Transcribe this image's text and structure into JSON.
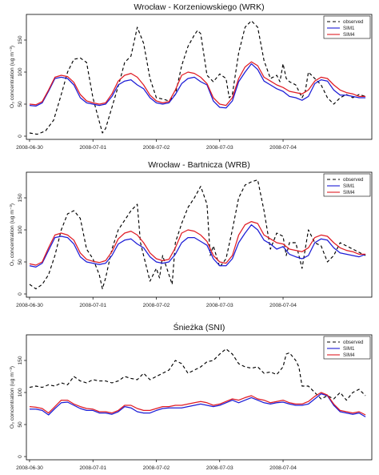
{
  "figure": {
    "ylabel": "O₃ concentration (ug m⁻³)",
    "xticks": [
      "2008-06-30",
      "2008-07-01",
      "2008-07-02",
      "2008-07-03",
      "2008-07-04"
    ],
    "legend": [
      {
        "label": "observed",
        "color": "#000000",
        "dash": "4,3"
      },
      {
        "label": "SIM1",
        "color": "#1c1cd6",
        "dash": ""
      },
      {
        "label": "SIM4",
        "color": "#e01b24",
        "dash": ""
      }
    ]
  },
  "chart_data": [
    {
      "type": "line",
      "title": "Wrocław - Korzeniowskiego (WRK)",
      "ylim": [
        -5,
        190
      ],
      "yticks": [
        0,
        50,
        100,
        150
      ],
      "xlim": [
        -0.05,
        5.4
      ],
      "legend_position": "top-right",
      "series": [
        {
          "name": "observed",
          "x": [
            0,
            0.12,
            0.25,
            0.38,
            0.5,
            0.6,
            0.7,
            0.8,
            0.9,
            1.0,
            1.08,
            1.15,
            1.2,
            1.3,
            1.42,
            1.5,
            1.6,
            1.7,
            1.8,
            1.9,
            2.0,
            2.1,
            2.2,
            2.3,
            2.4,
            2.5,
            2.6,
            2.65,
            2.7,
            2.8,
            2.9,
            3.0,
            3.1,
            3.15,
            3.2,
            3.3,
            3.4,
            3.5,
            3.6,
            3.7,
            3.8,
            3.9,
            3.95,
            4.0,
            4.05,
            4.1,
            4.2,
            4.3,
            4.35,
            4.4,
            4.5,
            4.6,
            4.7,
            4.8,
            4.9,
            5.0,
            5.1,
            5.2,
            5.3
          ],
          "y": [
            5,
            3,
            8,
            25,
            65,
            100,
            120,
            122,
            115,
            60,
            30,
            5,
            12,
            45,
            85,
            115,
            125,
            170,
            145,
            90,
            60,
            58,
            55,
            65,
            110,
            140,
            158,
            165,
            160,
            95,
            85,
            97,
            90,
            60,
            65,
            130,
            170,
            180,
            170,
            118,
            90,
            95,
            85,
            113,
            90,
            85,
            80,
            60,
            70,
            100,
            90,
            80,
            60,
            50,
            60,
            65,
            60,
            65,
            62
          ]
        },
        {
          "name": "SIM1",
          "x": [
            0,
            0.1,
            0.2,
            0.3,
            0.4,
            0.5,
            0.6,
            0.7,
            0.8,
            0.9,
            1.0,
            1.1,
            1.2,
            1.3,
            1.4,
            1.5,
            1.6,
            1.7,
            1.8,
            1.9,
            2.0,
            2.1,
            2.2,
            2.3,
            2.4,
            2.5,
            2.6,
            2.7,
            2.8,
            2.9,
            3.0,
            3.1,
            3.2,
            3.3,
            3.4,
            3.5,
            3.6,
            3.7,
            3.8,
            3.9,
            4.0,
            4.1,
            4.2,
            4.3,
            4.4,
            4.5,
            4.6,
            4.7,
            4.8,
            4.9,
            5.0,
            5.1,
            5.2,
            5.3
          ],
          "y": [
            48,
            47,
            52,
            70,
            90,
            92,
            90,
            80,
            60,
            52,
            50,
            48,
            50,
            62,
            80,
            86,
            88,
            80,
            74,
            60,
            52,
            50,
            52,
            65,
            82,
            90,
            92,
            85,
            80,
            55,
            45,
            44,
            55,
            85,
            100,
            113,
            104,
            86,
            80,
            74,
            70,
            62,
            60,
            56,
            62,
            82,
            88,
            86,
            72,
            64,
            64,
            62,
            60,
            60
          ]
        },
        {
          "name": "SIM4",
          "x": [
            0,
            0.1,
            0.2,
            0.3,
            0.4,
            0.5,
            0.6,
            0.7,
            0.8,
            0.9,
            1.0,
            1.1,
            1.2,
            1.3,
            1.4,
            1.5,
            1.6,
            1.7,
            1.8,
            1.9,
            2.0,
            2.1,
            2.2,
            2.3,
            2.4,
            2.5,
            2.6,
            2.7,
            2.8,
            2.9,
            3.0,
            3.1,
            3.2,
            3.3,
            3.4,
            3.5,
            3.6,
            3.7,
            3.8,
            3.9,
            4.0,
            4.1,
            4.2,
            4.3,
            4.4,
            4.5,
            4.6,
            4.7,
            4.8,
            4.9,
            5.0,
            5.1,
            5.2,
            5.3
          ],
          "y": [
            50,
            49,
            54,
            72,
            92,
            95,
            93,
            84,
            65,
            55,
            52,
            50,
            52,
            66,
            86,
            95,
            98,
            92,
            80,
            64,
            55,
            52,
            54,
            72,
            95,
            100,
            98,
            92,
            82,
            60,
            50,
            48,
            60,
            90,
            108,
            116,
            110,
            92,
            86,
            80,
            76,
            70,
            68,
            66,
            72,
            86,
            92,
            90,
            80,
            72,
            68,
            66,
            62,
            62
          ]
        }
      ]
    },
    {
      "type": "line",
      "title": "Wrocław - Bartnicza (WRB)",
      "ylim": [
        -5,
        190
      ],
      "yticks": [
        0,
        50,
        100,
        150
      ],
      "xlim": [
        -0.05,
        5.4
      ],
      "legend_position": "top-right",
      "series": [
        {
          "name": "observed",
          "x": [
            0,
            0.1,
            0.2,
            0.3,
            0.4,
            0.5,
            0.6,
            0.7,
            0.8,
            0.9,
            1.0,
            1.1,
            1.15,
            1.2,
            1.3,
            1.4,
            1.5,
            1.6,
            1.7,
            1.75,
            1.8,
            1.9,
            2.0,
            2.05,
            2.1,
            2.2,
            2.25,
            2.3,
            2.4,
            2.5,
            2.6,
            2.7,
            2.8,
            2.85,
            2.9,
            3.0,
            3.1,
            3.2,
            3.3,
            3.4,
            3.5,
            3.6,
            3.7,
            3.8,
            3.9,
            4.0,
            4.05,
            4.1,
            4.2,
            4.3,
            4.4,
            4.5,
            4.6,
            4.7,
            4.8,
            4.9,
            5.0,
            5.1,
            5.2,
            5.3
          ],
          "y": [
            15,
            8,
            15,
            30,
            60,
            100,
            125,
            130,
            118,
            70,
            55,
            30,
            8,
            25,
            70,
            100,
            115,
            130,
            140,
            80,
            60,
            20,
            40,
            25,
            60,
            30,
            15,
            80,
            110,
            135,
            150,
            168,
            140,
            60,
            75,
            42,
            55,
            100,
            150,
            170,
            175,
            178,
            130,
            70,
            95,
            90,
            60,
            80,
            80,
            40,
            100,
            80,
            75,
            50,
            60,
            80,
            75,
            70,
            65,
            60
          ]
        },
        {
          "name": "SIM1",
          "x": [
            0,
            0.1,
            0.2,
            0.3,
            0.4,
            0.5,
            0.6,
            0.7,
            0.8,
            0.9,
            1.0,
            1.1,
            1.2,
            1.3,
            1.4,
            1.5,
            1.6,
            1.7,
            1.8,
            1.9,
            2.0,
            2.1,
            2.2,
            2.3,
            2.4,
            2.5,
            2.6,
            2.7,
            2.8,
            2.9,
            3.0,
            3.1,
            3.2,
            3.3,
            3.4,
            3.5,
            3.6,
            3.7,
            3.8,
            3.9,
            4.0,
            4.1,
            4.2,
            4.3,
            4.4,
            4.5,
            4.6,
            4.7,
            4.8,
            4.9,
            5.0,
            5.1,
            5.2,
            5.3
          ],
          "y": [
            44,
            42,
            48,
            68,
            88,
            90,
            88,
            78,
            58,
            50,
            48,
            46,
            48,
            60,
            78,
            84,
            86,
            78,
            72,
            58,
            50,
            48,
            50,
            62,
            80,
            88,
            88,
            82,
            76,
            55,
            44,
            44,
            55,
            80,
            95,
            108,
            100,
            84,
            78,
            70,
            74,
            62,
            58,
            55,
            60,
            80,
            86,
            84,
            72,
            64,
            62,
            60,
            58,
            62
          ]
        },
        {
          "name": "SIM4",
          "x": [
            0,
            0.1,
            0.2,
            0.3,
            0.4,
            0.5,
            0.6,
            0.7,
            0.8,
            0.9,
            1.0,
            1.1,
            1.2,
            1.3,
            1.4,
            1.5,
            1.6,
            1.7,
            1.8,
            1.9,
            2.0,
            2.1,
            2.2,
            2.3,
            2.4,
            2.5,
            2.6,
            2.7,
            2.8,
            2.9,
            3.0,
            3.1,
            3.2,
            3.3,
            3.4,
            3.5,
            3.6,
            3.7,
            3.8,
            3.9,
            4.0,
            4.1,
            4.2,
            4.3,
            4.4,
            4.5,
            4.6,
            4.7,
            4.8,
            4.9,
            5.0,
            5.1,
            5.2,
            5.3
          ],
          "y": [
            47,
            45,
            50,
            72,
            92,
            95,
            92,
            84,
            64,
            54,
            51,
            49,
            52,
            66,
            86,
            95,
            98,
            92,
            80,
            64,
            55,
            52,
            54,
            72,
            95,
            100,
            98,
            92,
            82,
            60,
            50,
            48,
            60,
            92,
            108,
            113,
            110,
            92,
            86,
            80,
            78,
            70,
            68,
            66,
            72,
            88,
            92,
            90,
            80,
            72,
            68,
            66,
            62,
            62
          ]
        }
      ]
    },
    {
      "type": "line",
      "title": "Śnieżka (SNI)",
      "ylim": [
        -5,
        190
      ],
      "yticks": [
        0,
        50,
        100,
        150
      ],
      "xlim": [
        -0.05,
        5.4
      ],
      "legend_position": "top-right",
      "series": [
        {
          "name": "observed",
          "x": [
            0,
            0.1,
            0.2,
            0.3,
            0.4,
            0.5,
            0.6,
            0.7,
            0.8,
            0.9,
            1.0,
            1.1,
            1.2,
            1.3,
            1.4,
            1.5,
            1.6,
            1.7,
            1.8,
            1.9,
            2.0,
            2.1,
            2.2,
            2.3,
            2.4,
            2.5,
            2.6,
            2.7,
            2.8,
            2.9,
            3.0,
            3.1,
            3.2,
            3.3,
            3.4,
            3.5,
            3.6,
            3.7,
            3.8,
            3.9,
            4.0,
            4.05,
            4.1,
            4.2,
            4.25,
            4.3,
            4.4,
            4.5,
            4.6,
            4.7,
            4.8,
            4.9,
            5.0,
            5.1,
            5.2,
            5.3
          ],
          "y": [
            108,
            110,
            108,
            112,
            110,
            115,
            112,
            125,
            118,
            115,
            120,
            118,
            118,
            115,
            118,
            125,
            122,
            120,
            130,
            120,
            125,
            130,
            135,
            150,
            145,
            130,
            135,
            140,
            148,
            150,
            160,
            168,
            160,
            145,
            140,
            138,
            140,
            130,
            132,
            128,
            140,
            160,
            162,
            150,
            140,
            110,
            110,
            100,
            90,
            95,
            90,
            100,
            88,
            100,
            105,
            95
          ]
        },
        {
          "name": "SIM1",
          "x": [
            0,
            0.1,
            0.2,
            0.3,
            0.4,
            0.5,
            0.6,
            0.7,
            0.8,
            0.9,
            1.0,
            1.1,
            1.2,
            1.3,
            1.4,
            1.5,
            1.6,
            1.7,
            1.8,
            1.9,
            2.0,
            2.1,
            2.2,
            2.3,
            2.4,
            2.5,
            2.6,
            2.7,
            2.8,
            2.9,
            3.0,
            3.1,
            3.2,
            3.3,
            3.4,
            3.5,
            3.6,
            3.7,
            3.8,
            3.9,
            4.0,
            4.1,
            4.2,
            4.3,
            4.4,
            4.5,
            4.6,
            4.7,
            4.8,
            4.9,
            5.0,
            5.1,
            5.2,
            5.3
          ],
          "y": [
            74,
            74,
            72,
            65,
            75,
            84,
            85,
            80,
            75,
            72,
            72,
            68,
            68,
            66,
            70,
            78,
            76,
            70,
            68,
            68,
            72,
            75,
            76,
            76,
            76,
            78,
            80,
            82,
            80,
            78,
            80,
            84,
            88,
            84,
            88,
            92,
            88,
            84,
            82,
            84,
            85,
            82,
            80,
            80,
            82,
            90,
            98,
            95,
            80,
            70,
            68,
            66,
            68,
            62
          ]
        },
        {
          "name": "SIM4",
          "x": [
            0,
            0.1,
            0.2,
            0.3,
            0.4,
            0.5,
            0.6,
            0.7,
            0.8,
            0.9,
            1.0,
            1.1,
            1.2,
            1.3,
            1.4,
            1.5,
            1.6,
            1.7,
            1.8,
            1.9,
            2.0,
            2.1,
            2.2,
            2.3,
            2.4,
            2.5,
            2.6,
            2.7,
            2.8,
            2.9,
            3.0,
            3.1,
            3.2,
            3.3,
            3.4,
            3.5,
            3.6,
            3.7,
            3.8,
            3.9,
            4.0,
            4.1,
            4.2,
            4.3,
            4.4,
            4.5,
            4.6,
            4.7,
            4.8,
            4.9,
            5.0,
            5.1,
            5.2,
            5.3
          ],
          "y": [
            78,
            77,
            75,
            68,
            78,
            88,
            88,
            82,
            78,
            75,
            74,
            70,
            70,
            68,
            72,
            80,
            80,
            75,
            72,
            72,
            75,
            78,
            78,
            80,
            80,
            82,
            84,
            86,
            84,
            80,
            82,
            86,
            90,
            88,
            92,
            95,
            90,
            88,
            84,
            86,
            88,
            84,
            82,
            82,
            86,
            94,
            100,
            96,
            82,
            72,
            70,
            68,
            70,
            65
          ]
        }
      ]
    }
  ]
}
